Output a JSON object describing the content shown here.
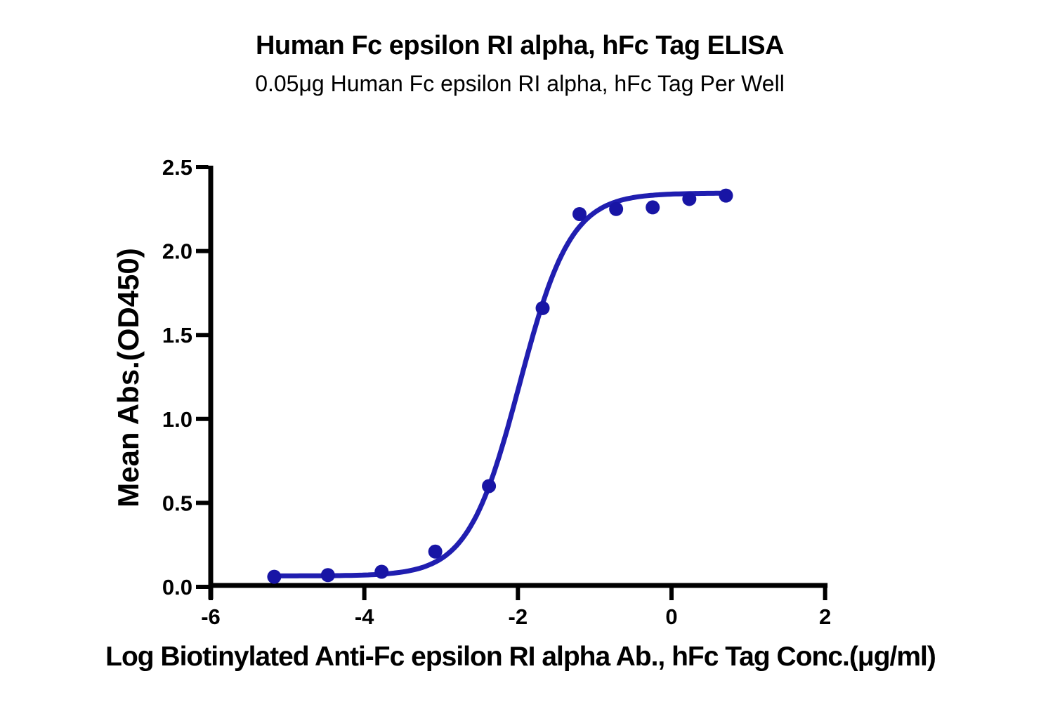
{
  "header": {
    "title": "Human Fc epsilon RI alpha, hFc Tag ELISA",
    "subtitle": "0.05μg Human Fc epsilon RI alpha, hFc Tag Per Well"
  },
  "chart_data": {
    "type": "scatter",
    "subtype": "sigmoidal-dose-response-4PL-fit",
    "title": "Human Fc epsilon RI alpha, hFc Tag ELISA",
    "subtitle": "0.05μg Human Fc epsilon RI alpha, hFc Tag Per Well",
    "xlabel": "Log Biotinylated Anti-Fc epsilon RI alpha Ab., hFc Tag Conc.(μg/ml)",
    "ylabel": "Mean Abs.(OD450)",
    "xlim": [
      -6,
      2
    ],
    "ylim": [
      0,
      2.5
    ],
    "x_ticks": [
      -6,
      -4,
      -2,
      0,
      2
    ],
    "y_ticks": [
      0.0,
      0.5,
      1.0,
      1.5,
      2.0,
      2.5
    ],
    "grid": false,
    "legend_position": "none",
    "points": {
      "x": [
        -5.173,
        -4.474,
        -3.775,
        -3.076,
        -2.377,
        -1.678,
        -1.198,
        -0.721,
        -0.245,
        0.232,
        0.709
      ],
      "y": [
        0.06,
        0.07,
        0.09,
        0.21,
        0.6,
        1.66,
        2.22,
        2.25,
        2.26,
        2.31,
        2.33
      ]
    },
    "fit_curve": {
      "model": "4PL",
      "bottom": 0.065,
      "top": 2.345,
      "logEC50": -1.98,
      "hill_slope": 1.3,
      "x_start": -5.173,
      "x_end": 0.76
    },
    "colors": {
      "curve": "#201eb0",
      "points": "#1815a5",
      "axis": "#000000",
      "text": "#000000",
      "background": "#ffffff"
    }
  }
}
